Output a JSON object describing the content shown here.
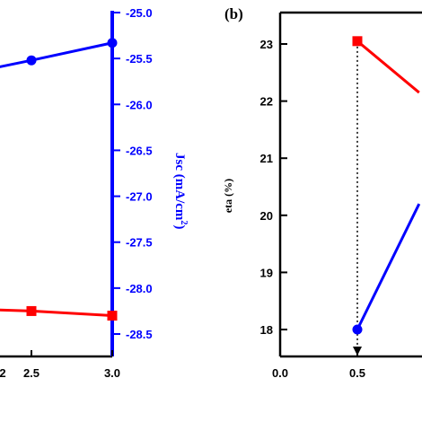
{
  "chart_data": [
    {
      "type": "line",
      "panel_label": "",
      "x_ticks": [
        "2.5",
        "3.0"
      ],
      "right_axis": {
        "label_main": "Jsc (mA/cm",
        "label_sup": "2",
        "label_close": ")",
        "ticks": [
          "-25.0",
          "-25.5",
          "-26.0",
          "-26.5",
          "-27.0",
          "-27.5",
          "-28.0",
          "-28.5"
        ],
        "ylim": [
          -28.7,
          -25.0
        ]
      },
      "series": [
        {
          "color": "#0000ff",
          "marker": "circle",
          "x": [
            2.0,
            2.5,
            3.0
          ],
          "y": [
            -25.7,
            -25.52,
            -25.33
          ]
        },
        {
          "color": "#ff0000",
          "marker": "square",
          "x": [
            2.0,
            2.5,
            3.0
          ],
          "y": [
            -28.22,
            -28.25,
            -28.3
          ]
        }
      ]
    },
    {
      "type": "line",
      "panel_label": "(b)",
      "ylabel": "eta (%)",
      "x_ticks": [
        "0.0",
        "0.5"
      ],
      "y_ticks": [
        "18",
        "19",
        "20",
        "21",
        "22",
        "23"
      ],
      "ylim": [
        17.6,
        23.5
      ],
      "series": [
        {
          "color": "#ff0000",
          "marker": "square",
          "x": [
            0.5,
            0.9
          ],
          "y": [
            23.05,
            22.15
          ]
        },
        {
          "color": "#0000ff",
          "marker": "circle",
          "x": [
            0.5,
            0.9
          ],
          "y": [
            18.0,
            20.2
          ]
        }
      ],
      "annotation": "dotted arrow at x = 0.5"
    }
  ]
}
